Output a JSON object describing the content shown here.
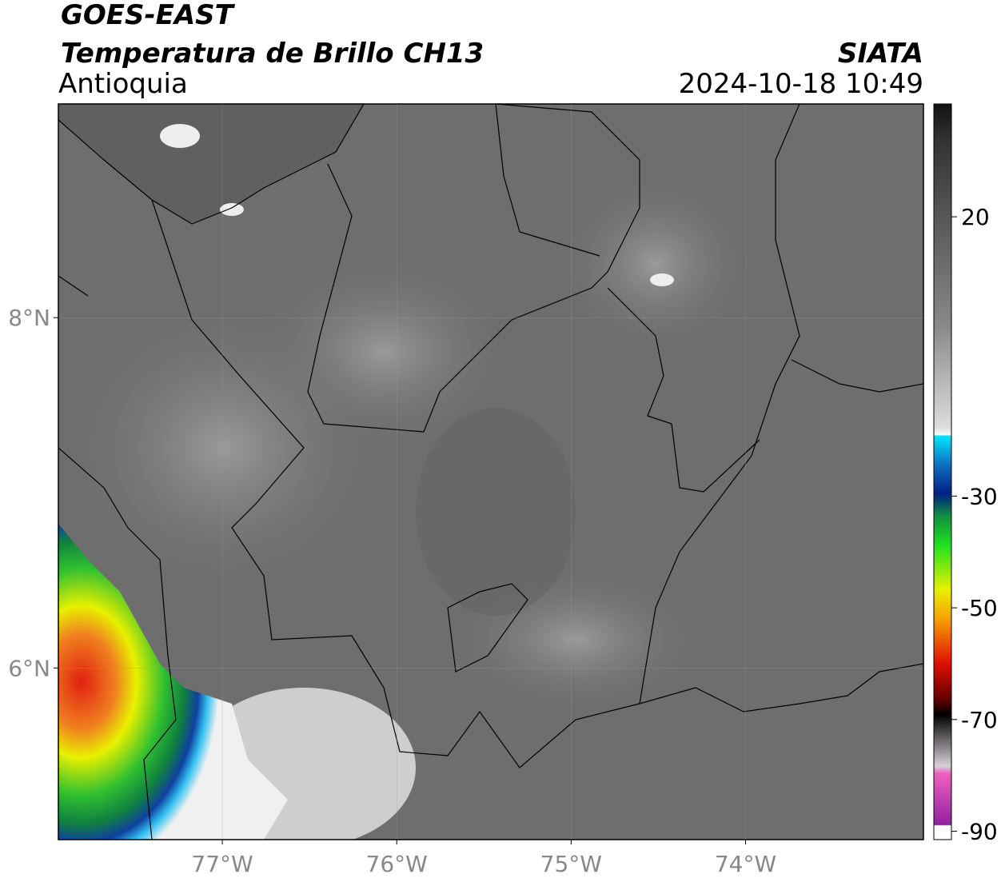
{
  "header": {
    "title": "GOES-EAST",
    "subtitle": "Temperatura de Brillo CH13",
    "region": "Antioquia",
    "source": "SIATA",
    "timestamp": "2024-10-18 10:49"
  },
  "map": {
    "xlim": [
      -77.94,
      -72.98
    ],
    "ylim": [
      5.02,
      9.22
    ],
    "lon_ticks": [
      {
        "value": -77,
        "label": "77°W"
      },
      {
        "value": -76,
        "label": "76°W"
      },
      {
        "value": -75,
        "label": "75°W"
      },
      {
        "value": -74,
        "label": "74°W"
      }
    ],
    "lat_ticks": [
      {
        "value": 8,
        "label": "8°N"
      },
      {
        "value": 6,
        "label": "6°N"
      }
    ]
  },
  "colorbar": {
    "lim": [
      -91.5,
      40.2
    ],
    "ticks": [
      20,
      -30,
      -50,
      -70,
      -90
    ]
  }
}
